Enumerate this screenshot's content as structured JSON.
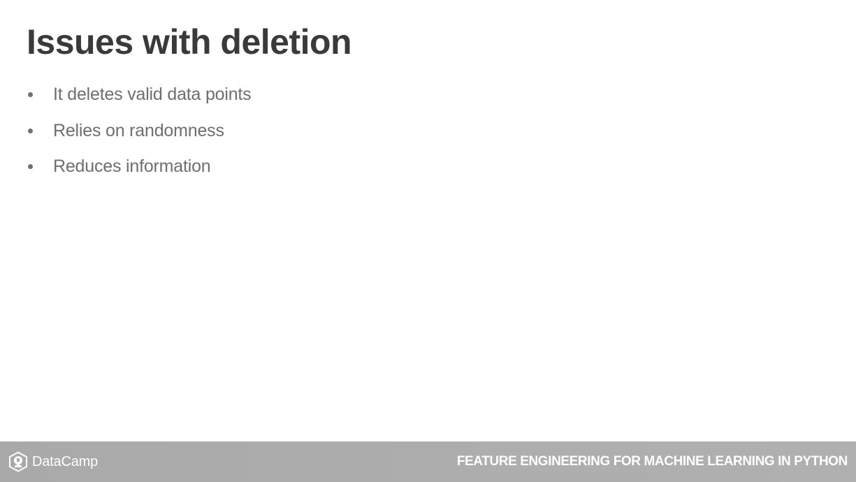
{
  "slide": {
    "title": "Issues with deletion",
    "bullets": [
      "It deletes valid data points",
      "Relies on randomness",
      "Reduces information"
    ]
  },
  "footer": {
    "brand_name": "DataCamp",
    "brand_icon": "datacamp-logo-icon",
    "course_title": "FEATURE ENGINEERING FOR MACHINE LEARNING IN PYTHON"
  },
  "colors": {
    "title": "#3a3a3a",
    "bullet_text": "#6e6e6e",
    "footer_bg": "#adadad",
    "footer_text": "#ffffff"
  }
}
